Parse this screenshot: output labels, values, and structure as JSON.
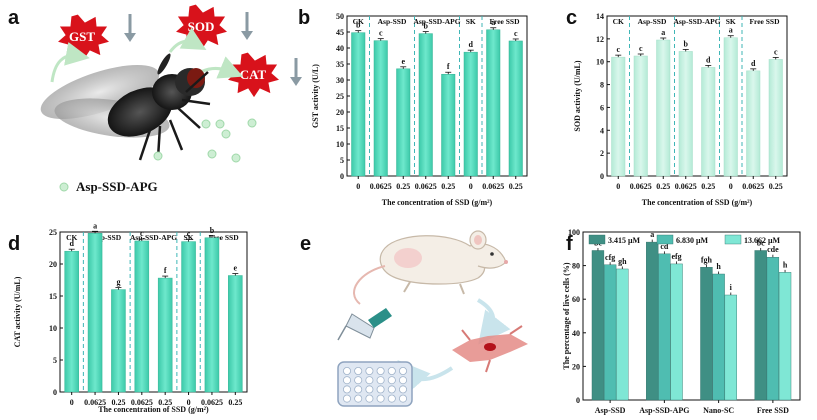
{
  "colors": {
    "bar_main": "#4fd9b9",
    "bar_light": "#c4f0e0",
    "f_dark": "#3f8f84",
    "f_mid": "#4fbdb1",
    "f_light": "#7fe7d5",
    "divider": "#3fb6b6"
  },
  "panel_labels": [
    "a",
    "b",
    "c",
    "d",
    "e",
    "f"
  ],
  "panel_a": {
    "bubbles": [
      "GST",
      "SOD",
      "CAT"
    ],
    "label": "Asp-SSD-APG"
  },
  "panel_e": {
    "caption": "mouse to fibroblast cell culture and drug treatment in multi-well plate"
  },
  "groups": [
    "CK",
    "Asp-SSD",
    "Asp-SSD-APG",
    "SK",
    "Free SSD"
  ],
  "chart_data": [
    {
      "id": "b",
      "type": "bar",
      "categories": [
        "0",
        "0.0625",
        "0.25",
        "0.0625",
        "0.25",
        "0",
        "0.0625",
        "0.25"
      ],
      "values": [
        44.8,
        42.3,
        33.5,
        44.5,
        31.8,
        38.7,
        45.7,
        42.2
      ],
      "letters": [
        "b",
        "c",
        "e",
        "b",
        "f",
        "d",
        "a",
        "c"
      ],
      "ylim": [
        0,
        50
      ],
      "yticks": [
        "0",
        "5",
        "10",
        "15",
        "20",
        "25",
        "30",
        "35",
        "40",
        "45",
        "50"
      ],
      "ylabel": "GST activity (U/L)",
      "xlabel": "The concentration of SSD (g/m²)"
    },
    {
      "id": "c",
      "type": "bar",
      "categories": [
        "0",
        "0.0625",
        "0.25",
        "0.0625",
        "0.25",
        "0",
        "0.0625",
        "0.25"
      ],
      "values": [
        10.4,
        10.5,
        11.9,
        10.9,
        9.5,
        12.1,
        9.2,
        10.2
      ],
      "letters": [
        "c",
        "c",
        "a",
        "b",
        "d",
        "a",
        "d",
        "c"
      ],
      "ylim": [
        0,
        14
      ],
      "yticks": [
        "0",
        "2",
        "4",
        "6",
        "8",
        "10",
        "12",
        "14"
      ],
      "ylabel": "SOD activity (U/mL)",
      "xlabel": "The concentration of SSD (g/m²)"
    },
    {
      "id": "d",
      "type": "bar",
      "categories": [
        "0",
        "0.0625",
        "0.25",
        "0.0625",
        "0.25",
        "0",
        "0.0625",
        "0.25"
      ],
      "values": [
        22.0,
        24.8,
        16.0,
        23.6,
        17.8,
        23.5,
        24.1,
        18.2
      ],
      "letters": [
        "d",
        "a",
        "g",
        "c",
        "f",
        "c",
        "b",
        "e"
      ],
      "ylim": [
        0,
        25
      ],
      "yticks": [
        "0",
        "5",
        "10",
        "15",
        "20",
        "25"
      ],
      "ylabel": "CAT activity (U/mL)",
      "xlabel": "The concentration of SSD (g/m²)"
    },
    {
      "id": "f",
      "type": "bar",
      "categories": [
        "Asp-SSD",
        "Asp-SSD-APG",
        "Nano-SC",
        "Free SSD"
      ],
      "series": [
        {
          "name": "3.415 μM",
          "values": [
            89,
            94,
            79,
            89
          ],
          "letters": [
            "bc",
            "a",
            "fgh",
            "bc"
          ]
        },
        {
          "name": "6.830 μM",
          "values": [
            80.5,
            87,
            75,
            85
          ],
          "letters": [
            "cfg",
            "cd",
            "h",
            "cde"
          ]
        },
        {
          "name": "13.662 μM",
          "values": [
            78,
            81,
            62.5,
            76
          ],
          "letters": [
            "gh",
            "efg",
            "i",
            "h"
          ]
        }
      ],
      "ylim": [
        0,
        100
      ],
      "yticks": [
        "0",
        "20",
        "40",
        "60",
        "80",
        "100"
      ],
      "ylabel": "The percentage of live cells (%)",
      "xlabel": ""
    }
  ]
}
